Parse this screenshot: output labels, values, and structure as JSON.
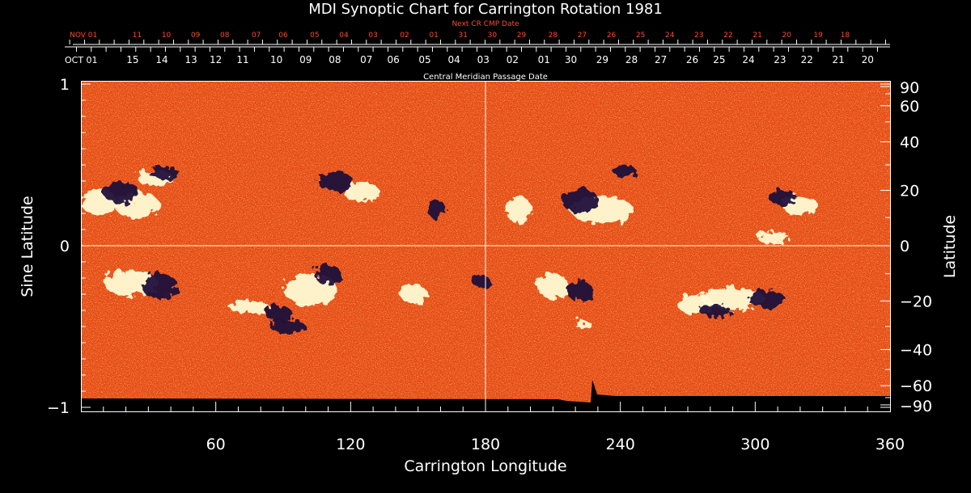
{
  "chart_data": {
    "type": "heatmap",
    "title": "MDI Synoptic Chart for Carrington Rotation 1981",
    "xlabel": "Carrington Longitude",
    "ylabel_left": "Sine Latitude",
    "ylabel_right": "Latitude",
    "xlim": [
      0,
      360
    ],
    "ylim": [
      -1,
      1
    ],
    "x_ticks": [
      60,
      120,
      180,
      240,
      300,
      360
    ],
    "y_ticks_left": [
      {
        "value": 1,
        "label": "1"
      },
      {
        "value": 0,
        "label": "0"
      },
      {
        "value": -1,
        "label": "−1"
      }
    ],
    "y_ticks_right": [
      {
        "deg": 90,
        "label": "90"
      },
      {
        "deg": 60,
        "label": "60"
      },
      {
        "deg": 40,
        "label": "40"
      },
      {
        "deg": 20,
        "label": "20"
      },
      {
        "deg": 0,
        "label": "0"
      },
      {
        "deg": -20,
        "label": "−20"
      },
      {
        "deg": -40,
        "label": "−40"
      },
      {
        "deg": -60,
        "label": "−60"
      },
      {
        "deg": -90,
        "label": "−90"
      }
    ],
    "grid": "crosshair at 180 longitude and 0 latitude",
    "cmp_axis_label": "Central Meridian Passage Date",
    "cmp_dates": [
      {
        "lon": 0,
        "label": "OCT 01",
        "anchor": "start"
      },
      {
        "lon": 23,
        "label": "15"
      },
      {
        "lon": 36,
        "label": "14"
      },
      {
        "lon": 49,
        "label": "13"
      },
      {
        "lon": 60,
        "label": "12"
      },
      {
        "lon": 72,
        "label": "11"
      },
      {
        "lon": 87,
        "label": "10"
      },
      {
        "lon": 100,
        "label": "09"
      },
      {
        "lon": 113,
        "label": "08"
      },
      {
        "lon": 127,
        "label": "07"
      },
      {
        "lon": 139,
        "label": "06"
      },
      {
        "lon": 153,
        "label": "05"
      },
      {
        "lon": 166,
        "label": "04"
      },
      {
        "lon": 179,
        "label": "03"
      },
      {
        "lon": 192,
        "label": "02"
      },
      {
        "lon": 206,
        "label": "01"
      },
      {
        "lon": 218,
        "label": "30"
      },
      {
        "lon": 232,
        "label": "29"
      },
      {
        "lon": 245,
        "label": "28"
      },
      {
        "lon": 258,
        "label": "27"
      },
      {
        "lon": 272,
        "label": "26"
      },
      {
        "lon": 284,
        "label": "25"
      },
      {
        "lon": 297,
        "label": "24"
      },
      {
        "lon": 311,
        "label": "23"
      },
      {
        "lon": 323,
        "label": "22"
      },
      {
        "lon": 337,
        "label": "21"
      },
      {
        "lon": 350,
        "label": "20"
      }
    ],
    "next_cr_axis_label": "Next CR CMP Date",
    "next_cr_dates": [
      {
        "lon": -5,
        "label": "NOV 01",
        "anchor": "start"
      },
      {
        "lon": 25,
        "label": "11"
      },
      {
        "lon": 38,
        "label": "10"
      },
      {
        "lon": 51,
        "label": "09"
      },
      {
        "lon": 64,
        "label": "08"
      },
      {
        "lon": 78,
        "label": "07"
      },
      {
        "lon": 90,
        "label": "06"
      },
      {
        "lon": 104,
        "label": "05"
      },
      {
        "lon": 117,
        "label": "04"
      },
      {
        "lon": 130,
        "label": "03"
      },
      {
        "lon": 144,
        "label": "02"
      },
      {
        "lon": 157,
        "label": "01"
      },
      {
        "lon": 170,
        "label": "31"
      },
      {
        "lon": 183,
        "label": "30"
      },
      {
        "lon": 196,
        "label": "29"
      },
      {
        "lon": 210,
        "label": "28"
      },
      {
        "lon": 223,
        "label": "27"
      },
      {
        "lon": 236,
        "label": "26"
      },
      {
        "lon": 249,
        "label": "25"
      },
      {
        "lon": 262,
        "label": "24"
      },
      {
        "lon": 275,
        "label": "23"
      },
      {
        "lon": 288,
        "label": "22"
      },
      {
        "lon": 301,
        "label": "21"
      },
      {
        "lon": 314,
        "label": "20"
      },
      {
        "lon": 328,
        "label": "19"
      },
      {
        "lon": 340,
        "label": "18"
      }
    ],
    "colors": {
      "background_field": "#f04a10",
      "positive_polarity": "#ffffd8",
      "negative_polarity": "#1a0a3a",
      "next_cr_label": "#ff4a2a",
      "text": "#ffffff"
    },
    "active_regions": [
      {
        "lon": 8,
        "sinlat": 0.27,
        "rlon": 8,
        "rlat": 0.08,
        "polarity": "positive"
      },
      {
        "lon": 33,
        "sinlat": 0.42,
        "rlon": 8,
        "rlat": 0.05,
        "polarity": "positive"
      },
      {
        "lon": 37,
        "sinlat": 0.45,
        "rlon": 7,
        "rlat": 0.04,
        "polarity": "negative"
      },
      {
        "lon": 25,
        "sinlat": 0.25,
        "rlon": 10,
        "rlat": 0.08,
        "polarity": "positive"
      },
      {
        "lon": 18,
        "sinlat": 0.33,
        "rlon": 8,
        "rlat": 0.07,
        "polarity": "negative"
      },
      {
        "lon": 125,
        "sinlat": 0.33,
        "rlon": 8,
        "rlat": 0.06,
        "polarity": "positive"
      },
      {
        "lon": 113,
        "sinlat": 0.4,
        "rlon": 8,
        "rlat": 0.06,
        "polarity": "negative"
      },
      {
        "lon": 158,
        "sinlat": 0.23,
        "rlon": 4,
        "rlat": 0.06,
        "polarity": "negative"
      },
      {
        "lon": 195,
        "sinlat": 0.22,
        "rlon": 6,
        "rlat": 0.08,
        "polarity": "positive"
      },
      {
        "lon": 232,
        "sinlat": 0.22,
        "rlon": 14,
        "rlat": 0.08,
        "polarity": "positive"
      },
      {
        "lon": 222,
        "sinlat": 0.28,
        "rlon": 8,
        "rlat": 0.08,
        "polarity": "negative"
      },
      {
        "lon": 242,
        "sinlat": 0.46,
        "rlon": 5,
        "rlat": 0.04,
        "polarity": "negative"
      },
      {
        "lon": 320,
        "sinlat": 0.25,
        "rlon": 8,
        "rlat": 0.06,
        "polarity": "positive"
      },
      {
        "lon": 312,
        "sinlat": 0.3,
        "rlon": 6,
        "rlat": 0.05,
        "polarity": "negative"
      },
      {
        "lon": 308,
        "sinlat": 0.05,
        "rlon": 7,
        "rlat": 0.04,
        "polarity": "positive"
      },
      {
        "lon": 22,
        "sinlat": -0.23,
        "rlon": 12,
        "rlat": 0.08,
        "polarity": "positive"
      },
      {
        "lon": 35,
        "sinlat": -0.25,
        "rlon": 8,
        "rlat": 0.08,
        "polarity": "negative"
      },
      {
        "lon": 75,
        "sinlat": -0.38,
        "rlon": 9,
        "rlat": 0.04,
        "polarity": "positive"
      },
      {
        "lon": 88,
        "sinlat": -0.42,
        "rlon": 6,
        "rlat": 0.05,
        "polarity": "negative"
      },
      {
        "lon": 102,
        "sinlat": -0.27,
        "rlon": 12,
        "rlat": 0.1,
        "polarity": "positive"
      },
      {
        "lon": 110,
        "sinlat": -0.18,
        "rlon": 6,
        "rlat": 0.06,
        "polarity": "negative"
      },
      {
        "lon": 92,
        "sinlat": -0.5,
        "rlon": 8,
        "rlat": 0.04,
        "polarity": "negative"
      },
      {
        "lon": 148,
        "sinlat": -0.3,
        "rlon": 6,
        "rlat": 0.06,
        "polarity": "positive"
      },
      {
        "lon": 178,
        "sinlat": -0.22,
        "rlon": 4,
        "rlat": 0.04,
        "polarity": "negative"
      },
      {
        "lon": 210,
        "sinlat": -0.25,
        "rlon": 7,
        "rlat": 0.08,
        "polarity": "positive"
      },
      {
        "lon": 222,
        "sinlat": -0.28,
        "rlon": 6,
        "rlat": 0.06,
        "polarity": "negative"
      },
      {
        "lon": 223,
        "sinlat": -0.48,
        "rlon": 4,
        "rlat": 0.02,
        "polarity": "positive"
      },
      {
        "lon": 290,
        "sinlat": -0.33,
        "rlon": 14,
        "rlat": 0.07,
        "polarity": "positive"
      },
      {
        "lon": 273,
        "sinlat": -0.36,
        "rlon": 8,
        "rlat": 0.06,
        "polarity": "positive"
      },
      {
        "lon": 305,
        "sinlat": -0.33,
        "rlon": 8,
        "rlat": 0.06,
        "polarity": "negative"
      },
      {
        "lon": 282,
        "sinlat": -0.4,
        "rlon": 7,
        "rlat": 0.04,
        "polarity": "negative"
      }
    ]
  }
}
